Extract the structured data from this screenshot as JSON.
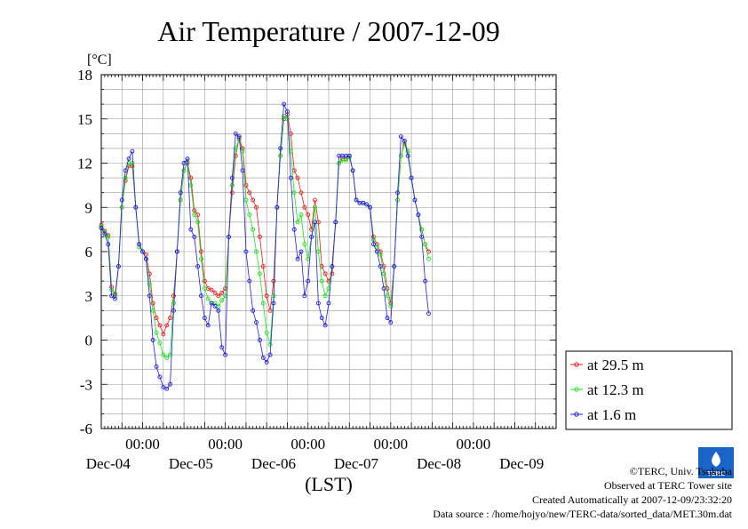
{
  "chart_data": {
    "type": "line",
    "title": "Air Temperature / 2007-12-09",
    "ylabel": "[°C]",
    "xlabel": "(LST)",
    "ylim": [
      -6,
      18
    ],
    "yticks": [
      "18",
      "15",
      "12",
      "9",
      "6",
      "3",
      "0",
      "-3",
      "-6"
    ],
    "x_unit": "hours since 2007-12-03 00:00 LST",
    "xlim": [
      12,
      144
    ],
    "xtick_time_label": "00:00",
    "date_labels": [
      "Dec-04",
      "Dec-05",
      "Dec-06",
      "Dec-07",
      "Dec-08",
      "Dec-09"
    ],
    "date_ticks": [
      24,
      48,
      72,
      96,
      120
    ],
    "grid": true,
    "legend": "right",
    "series": [
      {
        "name": "at 29.5 m",
        "color": "#e02020",
        "points": [
          [
            12,
            7.8
          ],
          [
            13,
            7.4
          ],
          [
            14,
            7.1
          ],
          [
            15,
            3.6
          ],
          [
            16,
            3.1
          ],
          [
            17,
            5
          ],
          [
            18,
            9
          ],
          [
            19,
            10.8
          ],
          [
            20,
            11.8
          ],
          [
            21,
            11.8
          ],
          [
            22,
            9
          ],
          [
            23,
            6.5
          ],
          [
            24,
            6
          ],
          [
            25,
            5.8
          ],
          [
            26,
            4.5
          ],
          [
            27,
            2.5
          ],
          [
            28,
            1.5
          ],
          [
            29,
            1
          ],
          [
            30,
            0.4
          ],
          [
            31,
            1
          ],
          [
            32,
            1.5
          ],
          [
            33,
            3
          ],
          [
            34,
            6
          ],
          [
            35,
            9.5
          ],
          [
            36,
            11.5
          ],
          [
            37,
            12
          ],
          [
            38,
            11
          ],
          [
            39,
            8.8
          ],
          [
            40,
            8.5
          ],
          [
            41,
            6
          ],
          [
            42,
            4
          ],
          [
            43,
            3.5
          ],
          [
            44,
            3.4
          ],
          [
            45,
            3.2
          ],
          [
            46,
            3
          ],
          [
            47,
            3.2
          ],
          [
            48,
            3.5
          ],
          [
            49,
            7
          ],
          [
            50,
            10
          ],
          [
            51,
            12.5
          ],
          [
            52,
            13.7
          ],
          [
            53,
            13
          ],
          [
            54,
            10.5
          ],
          [
            55,
            10
          ],
          [
            56,
            9.5
          ],
          [
            57,
            9
          ],
          [
            58,
            7
          ],
          [
            59,
            5
          ],
          [
            60,
            3
          ],
          [
            61,
            2
          ],
          [
            62,
            4
          ],
          [
            63,
            9
          ],
          [
            64,
            12.5
          ],
          [
            65,
            15
          ],
          [
            66,
            15.3
          ],
          [
            67,
            14
          ],
          [
            68,
            11.5
          ],
          [
            69,
            11
          ],
          [
            70,
            10
          ],
          [
            71,
            9
          ],
          [
            72,
            8.5
          ],
          [
            73,
            7.5
          ],
          [
            74,
            9.5
          ],
          [
            75,
            8
          ],
          [
            76,
            5
          ],
          [
            77,
            4.5
          ],
          [
            78,
            4
          ],
          [
            79,
            4.5
          ],
          [
            80,
            8
          ],
          [
            81,
            12
          ],
          [
            82,
            12.3
          ],
          [
            83,
            12.3
          ],
          [
            84,
            12.5
          ],
          [
            85,
            11.5
          ],
          [
            86,
            9.5
          ],
          [
            87,
            9.3
          ],
          [
            88,
            9.3
          ],
          [
            89,
            9.2
          ],
          [
            90,
            9
          ],
          [
            91,
            7
          ],
          [
            92,
            6.5
          ],
          [
            93,
            6
          ],
          [
            94,
            5
          ],
          [
            95,
            3.5
          ],
          [
            96,
            2.5
          ],
          [
            97,
            5
          ],
          [
            98,
            9.5
          ],
          [
            99,
            12.5
          ],
          [
            100,
            13.5
          ],
          [
            101,
            12.8
          ],
          [
            102,
            11
          ],
          [
            103,
            9.5
          ],
          [
            104,
            8.5
          ],
          [
            105,
            7.5
          ],
          [
            106,
            6.5
          ],
          [
            107,
            6
          ]
        ]
      },
      {
        "name": "at 12.3 m",
        "color": "#20e020",
        "points": [
          [
            12,
            7.7
          ],
          [
            13,
            7.3
          ],
          [
            14,
            7
          ],
          [
            15,
            3.4
          ],
          [
            16,
            3
          ],
          [
            17,
            5
          ],
          [
            18,
            9
          ],
          [
            19,
            11
          ],
          [
            20,
            12
          ],
          [
            21,
            12
          ],
          [
            22,
            9
          ],
          [
            23,
            6.3
          ],
          [
            24,
            6
          ],
          [
            25,
            5.5
          ],
          [
            26,
            3.8
          ],
          [
            27,
            2
          ],
          [
            28,
            0.5
          ],
          [
            29,
            -0.2
          ],
          [
            30,
            -1
          ],
          [
            31,
            -1.2
          ],
          [
            32,
            -1
          ],
          [
            33,
            2.5
          ],
          [
            34,
            6
          ],
          [
            35,
            9.5
          ],
          [
            36,
            11.5
          ],
          [
            37,
            12.1
          ],
          [
            38,
            10.5
          ],
          [
            39,
            8.5
          ],
          [
            40,
            8
          ],
          [
            41,
            5.5
          ],
          [
            42,
            3.5
          ],
          [
            43,
            2.8
          ],
          [
            44,
            2.5
          ],
          [
            45,
            2.5
          ],
          [
            46,
            2.3
          ],
          [
            47,
            2.7
          ],
          [
            48,
            3
          ],
          [
            49,
            7
          ],
          [
            50,
            10.5
          ],
          [
            51,
            13
          ],
          [
            52,
            13.6
          ],
          [
            53,
            12.8
          ],
          [
            54,
            9.5
          ],
          [
            55,
            8.5
          ],
          [
            56,
            7.5
          ],
          [
            57,
            6
          ],
          [
            58,
            4.5
          ],
          [
            59,
            2.5
          ],
          [
            60,
            0.5
          ],
          [
            61,
            -0.3
          ],
          [
            62,
            3
          ],
          [
            63,
            9
          ],
          [
            64,
            12.5
          ],
          [
            65,
            15.2
          ],
          [
            66,
            15
          ],
          [
            67,
            12.8
          ],
          [
            68,
            10
          ],
          [
            69,
            8
          ],
          [
            70,
            8.5
          ],
          [
            71,
            6.5
          ],
          [
            72,
            5.5
          ],
          [
            73,
            7
          ],
          [
            74,
            9
          ],
          [
            75,
            6
          ],
          [
            76,
            4
          ],
          [
            77,
            3
          ],
          [
            78,
            3.5
          ],
          [
            79,
            5
          ],
          [
            80,
            8
          ],
          [
            81,
            12
          ],
          [
            82,
            12.2
          ],
          [
            83,
            12.2
          ],
          [
            84,
            12.4
          ],
          [
            85,
            11.5
          ],
          [
            86,
            9.5
          ],
          [
            87,
            9.3
          ],
          [
            88,
            9.3
          ],
          [
            89,
            9.2
          ],
          [
            90,
            9
          ],
          [
            91,
            6.8
          ],
          [
            92,
            6.3
          ],
          [
            93,
            5.8
          ],
          [
            94,
            4.5
          ],
          [
            95,
            3
          ],
          [
            96,
            2.3
          ],
          [
            97,
            5
          ],
          [
            98,
            9.5
          ],
          [
            99,
            12.5
          ],
          [
            100,
            13.3
          ],
          [
            101,
            12.8
          ],
          [
            102,
            11
          ],
          [
            103,
            9.5
          ],
          [
            104,
            8.5
          ],
          [
            105,
            7.5
          ],
          [
            106,
            6.5
          ],
          [
            107,
            5.5
          ]
        ]
      },
      {
        "name": "at 1.6 m",
        "color": "#2020e0",
        "points": [
          [
            12,
            7.6
          ],
          [
            13,
            7.2
          ],
          [
            14,
            6.5
          ],
          [
            15,
            3
          ],
          [
            16,
            2.8
          ],
          [
            17,
            5
          ],
          [
            18,
            9.5
          ],
          [
            19,
            11.5
          ],
          [
            20,
            12.3
          ],
          [
            21,
            12.8
          ],
          [
            22,
            9
          ],
          [
            23,
            6.5
          ],
          [
            24,
            6
          ],
          [
            25,
            5.5
          ],
          [
            26,
            3
          ],
          [
            27,
            0
          ],
          [
            28,
            -1.8
          ],
          [
            29,
            -2.5
          ],
          [
            30,
            -3.2
          ],
          [
            31,
            -3.3
          ],
          [
            32,
            -3
          ],
          [
            33,
            2
          ],
          [
            34,
            6
          ],
          [
            35,
            10
          ],
          [
            36,
            12
          ],
          [
            37,
            12.3
          ],
          [
            38,
            7.5
          ],
          [
            39,
            7
          ],
          [
            40,
            5
          ],
          [
            41,
            3
          ],
          [
            42,
            1.5
          ],
          [
            43,
            1
          ],
          [
            44,
            2.5
          ],
          [
            45,
            2.3
          ],
          [
            46,
            2
          ],
          [
            47,
            -0.5
          ],
          [
            48,
            -1
          ],
          [
            49,
            7
          ],
          [
            50,
            11
          ],
          [
            51,
            14
          ],
          [
            52,
            13.8
          ],
          [
            53,
            11.5
          ],
          [
            54,
            6
          ],
          [
            55,
            4
          ],
          [
            56,
            2
          ],
          [
            57,
            1.2
          ],
          [
            58,
            0
          ],
          [
            59,
            -1.2
          ],
          [
            60,
            -1.5
          ],
          [
            61,
            -1
          ],
          [
            62,
            2.5
          ],
          [
            63,
            9
          ],
          [
            64,
            13
          ],
          [
            65,
            16
          ],
          [
            66,
            15.5
          ],
          [
            67,
            11
          ],
          [
            68,
            7.5
          ],
          [
            69,
            5.5
          ],
          [
            70,
            6
          ],
          [
            71,
            3
          ],
          [
            72,
            4
          ],
          [
            73,
            7
          ],
          [
            74,
            8
          ],
          [
            75,
            2.5
          ],
          [
            76,
            1.5
          ],
          [
            77,
            1
          ],
          [
            78,
            2.5
          ],
          [
            79,
            5
          ],
          [
            80,
            8
          ],
          [
            81,
            12.5
          ],
          [
            82,
            12.5
          ],
          [
            83,
            12.5
          ],
          [
            84,
            12.5
          ],
          [
            85,
            11.5
          ],
          [
            86,
            9.5
          ],
          [
            87,
            9.3
          ],
          [
            88,
            9.3
          ],
          [
            89,
            9.2
          ],
          [
            90,
            9
          ],
          [
            91,
            6.5
          ],
          [
            92,
            6
          ],
          [
            93,
            5
          ],
          [
            94,
            3.5
          ],
          [
            95,
            1.5
          ],
          [
            96,
            1.2
          ],
          [
            97,
            5
          ],
          [
            98,
            10
          ],
          [
            99,
            13.8
          ],
          [
            100,
            13.5
          ],
          [
            101,
            12.5
          ],
          [
            102,
            11
          ],
          [
            103,
            9.5
          ],
          [
            104,
            8.5
          ],
          [
            105,
            7
          ],
          [
            106,
            4
          ],
          [
            107,
            1.8
          ]
        ]
      }
    ]
  },
  "footer": {
    "copyright": "©TERC, Univ. Tsukuba",
    "observed": "Observed at TERC Tower site",
    "created": "Created Automatically at 2007-12-09/23:32:20",
    "source": "Data source : /home/hojyo/new/TERC-data/sorted_data/MET.30m.dat",
    "logo_text": "TERC"
  }
}
